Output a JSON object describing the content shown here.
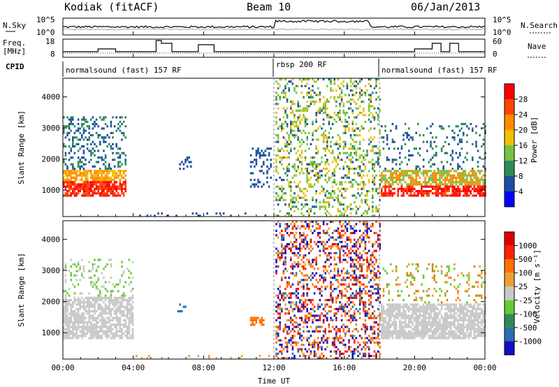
{
  "header": {
    "station": "Kodiak (fitACF)",
    "beam": "Beam 10",
    "date": "06/Jan/2013"
  },
  "top_panels": {
    "nsky_label": "N.Sky",
    "nsky_ticks": [
      "10^5",
      "10^0"
    ],
    "nsearch_label": "N.Search",
    "nsearch_ticks": [
      "10^5",
      "10^0"
    ],
    "freq_label_1": "Freq.",
    "freq_label_2": "[MHz]",
    "freq_ticks": [
      "18",
      "8"
    ],
    "nave_label": "Nave",
    "nave_ticks": [
      "60",
      "0"
    ],
    "cpid_label": "CPID",
    "cpid_segments": [
      {
        "label": "normalsound (fast) 157 RF",
        "start_hour": 0,
        "end_hour": 12
      },
      {
        "label": "rbsp 200 RF",
        "start_hour": 12,
        "end_hour": 18
      },
      {
        "label": "normalsound (fast) 157 RF",
        "start_hour": 18,
        "end_hour": 24
      }
    ]
  },
  "chart_data": [
    {
      "type": "heatmap",
      "panel": "power",
      "ylabel": "Slant Range [km]",
      "yticks": [
        "1000",
        "2000",
        "3000",
        "4000"
      ],
      "ylim": [
        150,
        4600
      ],
      "colorbar_label": "Power [dB]",
      "colorbar_ticks": [
        "4",
        "8",
        "12",
        "16",
        "20",
        "24",
        "28"
      ],
      "colors": [
        "#0000ff",
        "#1e4fa0",
        "#2e8b57",
        "#76c442",
        "#f0c000",
        "#ff8c00",
        "#ff4500",
        "#ff0000"
      ]
    },
    {
      "type": "heatmap",
      "panel": "velocity",
      "ylabel": "Slant Range [km]",
      "yticks": [
        "1000",
        "2000",
        "3000",
        "4000"
      ],
      "ylim": [
        150,
        4600
      ],
      "colorbar_label": "Velocity [m s⁻¹]",
      "colorbar_ticks": [
        "1000",
        "500",
        "100",
        "25",
        "-25",
        "-100",
        "-500",
        "-1000"
      ],
      "colors": [
        "#1010c0",
        "#2a6eb0",
        "#2e8b57",
        "#66cc33",
        "#c8c8c8",
        "#f0a030",
        "#ff7000",
        "#ff2000",
        "#e00000"
      ]
    }
  ],
  "xaxis": {
    "label": "Time UT",
    "ticks": [
      "00:00",
      "04:00",
      "08:00",
      "12:00",
      "16:00",
      "20:00",
      "00:00"
    ]
  }
}
